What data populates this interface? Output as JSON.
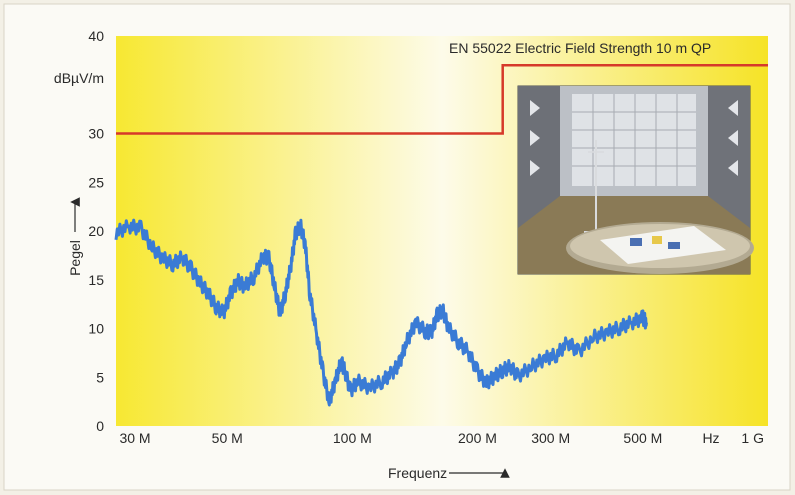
{
  "chart_data": {
    "type": "line",
    "xscale": "log",
    "xlim": [
      27000000,
      1000000000
    ],
    "ylim": [
      0,
      40
    ],
    "grid": false,
    "ylabel": "Pegel",
    "yunit": "dBµV/m",
    "xlabel": "Frequenz",
    "xunit": "Hz",
    "yticks": [
      {
        "value": 0,
        "label": "0"
      },
      {
        "value": 5,
        "label": "5"
      },
      {
        "value": 10,
        "label": "10"
      },
      {
        "value": 15,
        "label": "15"
      },
      {
        "value": 20,
        "label": "20"
      },
      {
        "value": 25,
        "label": "25"
      },
      {
        "value": 30,
        "label": "30"
      },
      {
        "value": 40,
        "label": "40"
      }
    ],
    "xticks": [
      {
        "value": 30000000,
        "label": "30 M"
      },
      {
        "value": 50000000,
        "label": "50 M"
      },
      {
        "value": 100000000,
        "label": "100 M"
      },
      {
        "value": 200000000,
        "label": "200 M"
      },
      {
        "value": 300000000,
        "label": "300 M"
      },
      {
        "value": 500000000,
        "label": "500 M"
      },
      {
        "value": 1000000000,
        "label": "1 G"
      }
    ],
    "limit_line": {
      "label": "EN 55022 Electric Field Strength 10 m QP",
      "color": "#d6392a",
      "points": [
        [
          27000000,
          30
        ],
        [
          230000000,
          30
        ],
        [
          230000000,
          37
        ],
        [
          1000000000,
          37
        ]
      ]
    },
    "series": [
      {
        "color": "#3a7bd5",
        "points": [
          [
            27000000,
            19.8
          ],
          [
            29000000,
            20.5
          ],
          [
            31000000,
            20.3
          ],
          [
            33000000,
            18.3
          ],
          [
            35000000,
            17.2
          ],
          [
            37000000,
            16.6
          ],
          [
            39000000,
            17.3
          ],
          [
            41000000,
            16.1
          ],
          [
            43000000,
            14.7
          ],
          [
            45000000,
            13.6
          ],
          [
            47000000,
            12.2
          ],
          [
            49000000,
            11.6
          ],
          [
            51000000,
            13.6
          ],
          [
            53000000,
            14.9
          ],
          [
            55000000,
            14.3
          ],
          [
            58000000,
            15.3
          ],
          [
            61000000,
            17.4
          ],
          [
            63000000,
            17.2
          ],
          [
            65000000,
            14.3
          ],
          [
            67000000,
            11.5
          ],
          [
            69000000,
            13.6
          ],
          [
            71000000,
            16.2
          ],
          [
            73000000,
            19.7
          ],
          [
            75000000,
            20.6
          ],
          [
            77000000,
            18.6
          ],
          [
            79000000,
            13.6
          ],
          [
            82000000,
            9.5
          ],
          [
            85000000,
            5.5
          ],
          [
            88000000,
            2.5
          ],
          [
            91000000,
            4.6
          ],
          [
            94000000,
            6.6
          ],
          [
            96000000,
            5.6
          ],
          [
            99000000,
            3.6
          ],
          [
            103000000,
            4.6
          ],
          [
            110000000,
            3.9
          ],
          [
            118000000,
            4.6
          ],
          [
            125000000,
            5.5
          ],
          [
            130000000,
            6.5
          ],
          [
            135000000,
            8.6
          ],
          [
            142000000,
            10.6
          ],
          [
            150000000,
            9.7
          ],
          [
            155000000,
            9.6
          ],
          [
            160000000,
            11.4
          ],
          [
            165000000,
            11.9
          ],
          [
            170000000,
            10.1
          ],
          [
            180000000,
            8.6
          ],
          [
            190000000,
            7.6
          ],
          [
            200000000,
            5.6
          ],
          [
            210000000,
            4.4
          ],
          [
            220000000,
            5.1
          ],
          [
            230000000,
            5.7
          ],
          [
            240000000,
            6.1
          ],
          [
            250000000,
            5.1
          ],
          [
            270000000,
            6.1
          ],
          [
            290000000,
            6.9
          ],
          [
            310000000,
            7.3
          ],
          [
            330000000,
            8.6
          ],
          [
            350000000,
            7.6
          ],
          [
            380000000,
            9.1
          ],
          [
            410000000,
            9.6
          ],
          [
            440000000,
            10.1
          ],
          [
            470000000,
            10.6
          ],
          [
            500000000,
            11.1
          ],
          [
            510000000,
            10.6
          ]
        ]
      }
    ]
  }
}
